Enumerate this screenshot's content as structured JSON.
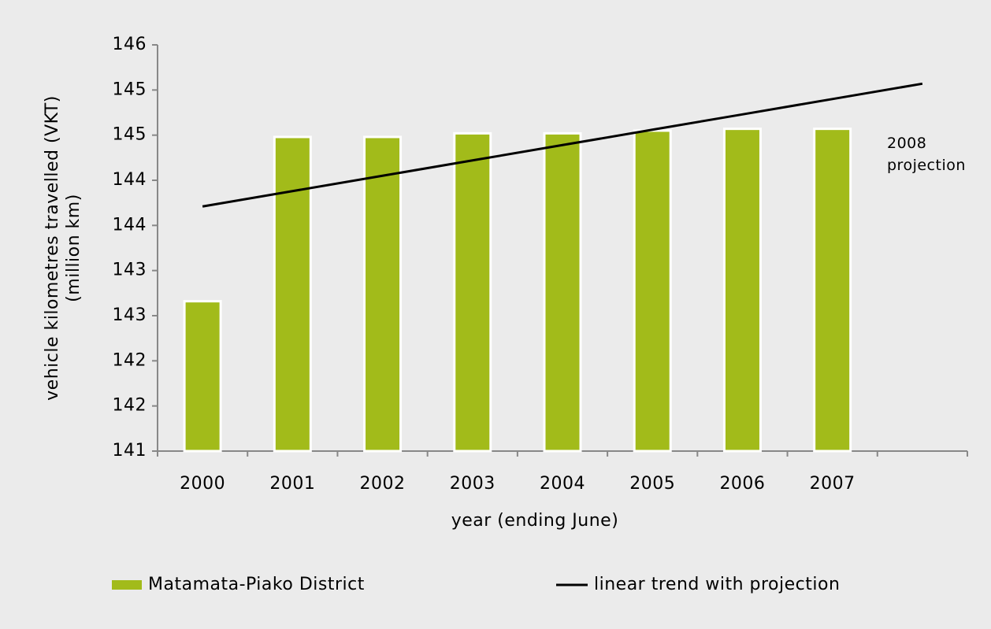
{
  "chart_data": {
    "type": "bar",
    "ylabel": [
      "vehicle kilometres travelled (VKT)",
      "(million km)"
    ],
    "xlabel": "year (ending June)",
    "categories": [
      "2000",
      "2001",
      "2002",
      "2003",
      "2004",
      "2005",
      "2006",
      "2007",
      null
    ],
    "series": [
      {
        "name": "Matamata-Piako District",
        "type": "bar",
        "color": "#a2bb1a",
        "values": [
          142.66,
          144.48,
          144.48,
          144.52,
          144.52,
          144.55,
          144.57,
          144.57,
          null
        ]
      },
      {
        "name": "linear trend with projection",
        "type": "line",
        "color": "#000000",
        "values": [
          143.71,
          143.88,
          144.05,
          144.22,
          144.39,
          144.56,
          144.73,
          144.9,
          145.07
        ]
      }
    ],
    "annotation": [
      "2008",
      "projection"
    ],
    "ylim": [
      141,
      145.5
    ],
    "yticks": [
      141,
      {
        "value": 141.5,
        "label": "142"
      },
      142,
      {
        "value": 142.5,
        "label": "143"
      },
      143,
      {
        "value": 143.5,
        "label": "144"
      },
      144,
      {
        "value": 144.5,
        "label": "145"
      },
      145,
      {
        "value": 145.5,
        "label": "146"
      }
    ]
  }
}
